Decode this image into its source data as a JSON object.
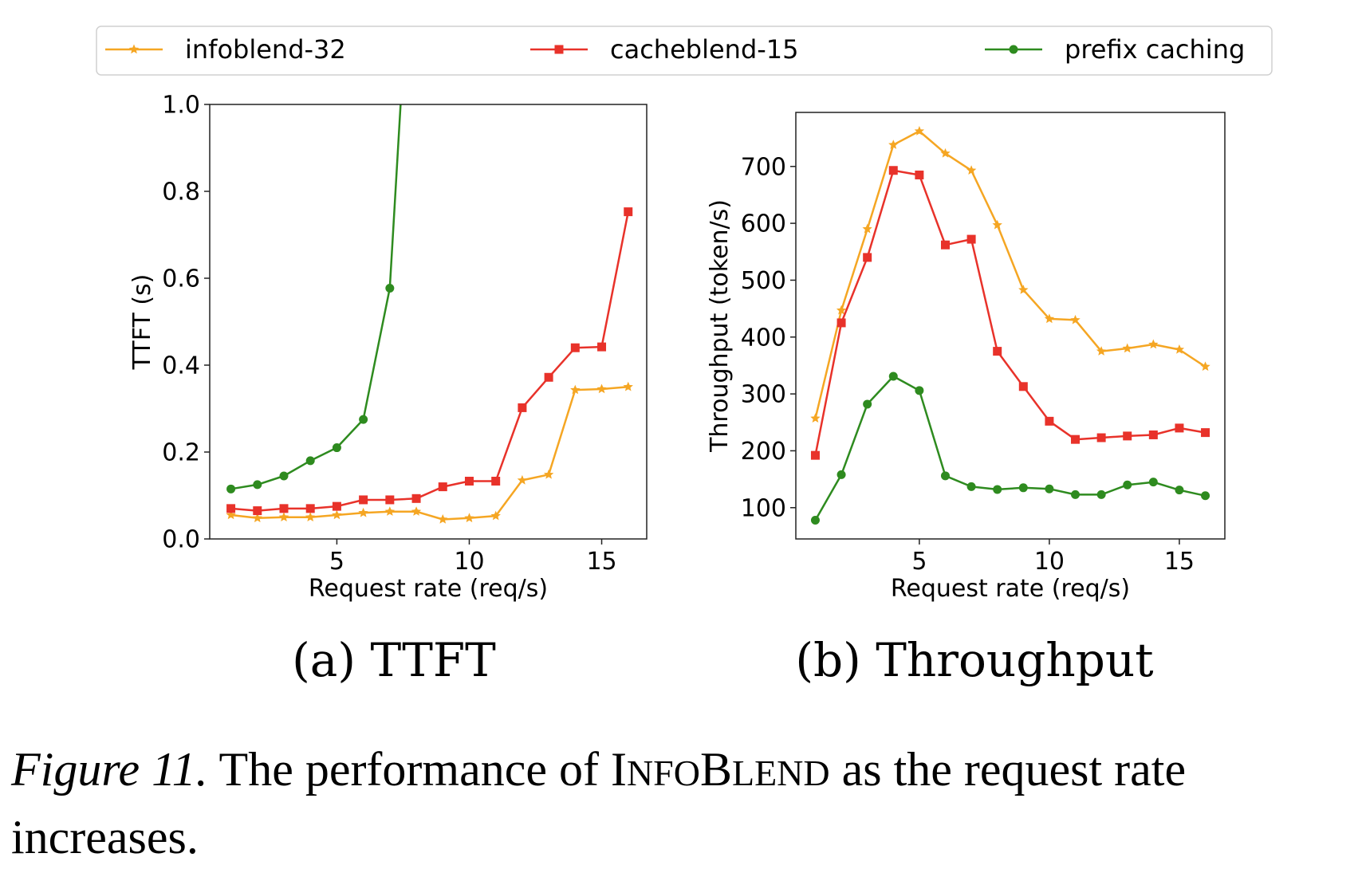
{
  "legend": {
    "placement": "top, outside, spanning both panels",
    "entries": [
      {
        "name": "infoblend-32",
        "color": "#f5a623",
        "marker": "star"
      },
      {
        "name": "cacheblend-15",
        "color": "#e8322a",
        "marker": "square"
      },
      {
        "name": "prefix caching",
        "color": "#2e8b1f",
        "marker": "circle"
      }
    ]
  },
  "panels": {
    "a": {
      "label": "(a) TTFT"
    },
    "b": {
      "label": "(b) Throughput"
    }
  },
  "caption": {
    "label": "Figure 11.",
    "text_before": " The performance of ",
    "name_parts": [
      "I",
      "NFO",
      "B",
      "LEND"
    ],
    "text_after": " as the request rate increases."
  },
  "chart_data": [
    {
      "type": "line",
      "panel": "a",
      "xlabel": "Request rate (req/s)",
      "ylabel": "TTFT (s)",
      "xlim": [
        0.2,
        16.7
      ],
      "ylim": [
        0,
        1.0
      ],
      "xticks": [
        5,
        10,
        15
      ],
      "yticks": [
        0.0,
        0.2,
        0.4,
        0.6,
        0.8,
        1.0
      ],
      "ytick_labels": [
        "0.0",
        "0.2",
        "0.4",
        "0.6",
        "0.8",
        "1.0"
      ],
      "grid": false,
      "series": [
        {
          "name": "infoblend-32",
          "color": "#f5a623",
          "marker": "star",
          "x": [
            1,
            2,
            3,
            4,
            5,
            6,
            7,
            8,
            9,
            10,
            11,
            12,
            13,
            14,
            15,
            16
          ],
          "y": [
            0.055,
            0.048,
            0.05,
            0.05,
            0.055,
            0.06,
            0.063,
            0.063,
            0.045,
            0.048,
            0.053,
            0.135,
            0.148,
            0.343,
            0.345,
            0.35
          ]
        },
        {
          "name": "cacheblend-15",
          "color": "#e8322a",
          "marker": "square",
          "x": [
            1,
            2,
            3,
            4,
            5,
            6,
            7,
            8,
            9,
            10,
            11,
            12,
            13,
            14,
            15,
            16
          ],
          "y": [
            0.07,
            0.065,
            0.07,
            0.07,
            0.075,
            0.09,
            0.09,
            0.093,
            0.12,
            0.133,
            0.133,
            0.302,
            0.372,
            0.44,
            0.442,
            0.753
          ]
        },
        {
          "name": "prefix caching",
          "color": "#2e8b1f",
          "marker": "circle",
          "x": [
            1,
            2,
            3,
            4,
            5,
            6,
            7,
            7.6
          ],
          "y": [
            0.115,
            0.125,
            0.145,
            0.18,
            0.21,
            0.275,
            0.577,
            1.2
          ],
          "marker_count": 7
        }
      ]
    },
    {
      "type": "line",
      "panel": "b",
      "xlabel": "Request rate (req/s)",
      "ylabel": "Throughput (token/s)",
      "xlim": [
        0.25,
        16.75
      ],
      "ylim": [
        45,
        795
      ],
      "xticks": [
        5,
        10,
        15
      ],
      "yticks": [
        100,
        200,
        300,
        400,
        500,
        600,
        700
      ],
      "ytick_labels": [
        "100",
        "200",
        "300",
        "400",
        "500",
        "600",
        "700"
      ],
      "grid": false,
      "series": [
        {
          "name": "infoblend-32",
          "color": "#f5a623",
          "marker": "star",
          "x": [
            1,
            2,
            3,
            4,
            5,
            6,
            7,
            8,
            9,
            10,
            11,
            12,
            13,
            14,
            15,
            16
          ],
          "y": [
            257,
            447,
            590,
            738,
            762,
            723,
            693,
            597,
            483,
            432,
            430,
            375,
            380,
            387,
            378,
            348
          ]
        },
        {
          "name": "cacheblend-15",
          "color": "#e8322a",
          "marker": "square",
          "x": [
            1,
            2,
            3,
            4,
            5,
            6,
            7,
            8,
            9,
            10,
            11,
            12,
            13,
            14,
            15,
            16
          ],
          "y": [
            192,
            425,
            540,
            693,
            685,
            562,
            572,
            375,
            313,
            252,
            220,
            223,
            226,
            228,
            240,
            232
          ]
        },
        {
          "name": "prefix caching",
          "color": "#2e8b1f",
          "marker": "circle",
          "x": [
            1,
            2,
            3,
            4,
            5,
            6,
            7,
            8,
            9,
            10,
            11,
            12,
            13,
            14,
            15,
            16
          ],
          "y": [
            78,
            158,
            282,
            331,
            306,
            156,
            137,
            132,
            135,
            133,
            123,
            123,
            140,
            145,
            131,
            121
          ]
        }
      ]
    }
  ]
}
